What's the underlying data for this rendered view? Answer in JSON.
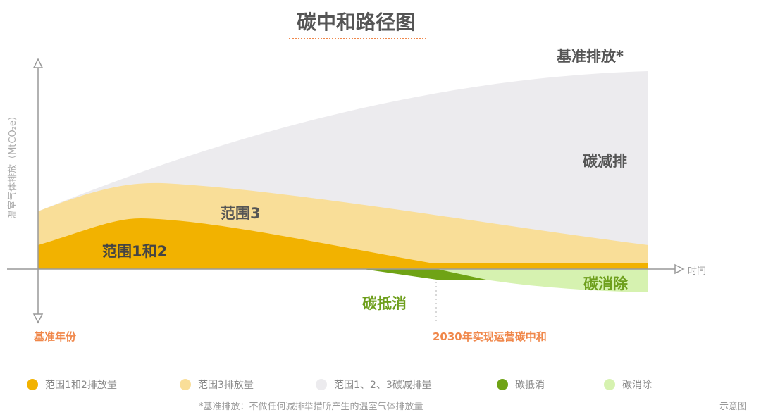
{
  "title": "碳中和路径图",
  "y_axis_label": "温室气体排放（MtCO₂e）",
  "x_axis_label": "时间",
  "labels": {
    "baseline": "基准排放*",
    "reduction": "碳减排",
    "scope3": "范围3",
    "scope12": "范围1和2",
    "offset": "碳抵消",
    "removal": "碳消除",
    "base_year": "基准年份",
    "milestone": "2030年实现运营碳中和"
  },
  "legend": [
    {
      "label": "范围1和2排放量",
      "color": "#F2B200"
    },
    {
      "label": "范围3排放量",
      "color": "#F9DE98"
    },
    {
      "label": "范围1、2、3碳减排量",
      "color": "#ECEBEE"
    },
    {
      "label": "碳抵消",
      "color": "#6FA315"
    },
    {
      "label": "碳消除",
      "color": "#D6F2B0"
    }
  ],
  "footnote": "*基准排放：不做任何减排举措所产生的温室气体排放量",
  "note": "示意图",
  "colors": {
    "accent": "#F0874A",
    "green_text": "#6E9F1C",
    "axis": "#999999"
  }
}
